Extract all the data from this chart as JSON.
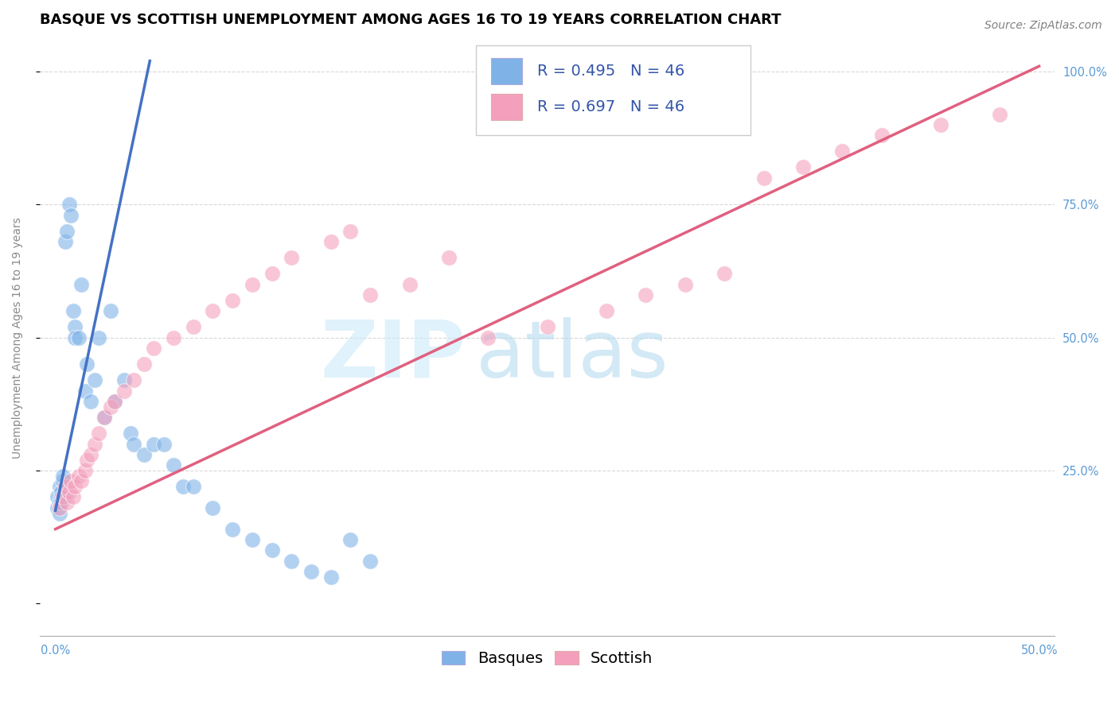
{
  "title": "BASQUE VS SCOTTISH UNEMPLOYMENT AMONG AGES 16 TO 19 YEARS CORRELATION CHART",
  "source": "Source: ZipAtlas.com",
  "ylabel": "Unemployment Among Ages 16 to 19 years",
  "background_color": "#ffffff",
  "basque_scatter_color": "#7fb3e8",
  "scottish_scatter_color": "#f4a0bc",
  "basque_line_color": "#4472c4",
  "scottish_line_color": "#e06080",
  "grid_color": "#d8d8d8",
  "title_fontsize": 13,
  "axis_label_fontsize": 10,
  "tick_fontsize": 10.5,
  "legend_fontsize": 14,
  "source_fontsize": 10,
  "basque_R": 0.495,
  "basque_N": 46,
  "scottish_R": 0.697,
  "scottish_N": 46,
  "xlim": [
    0.0,
    0.5
  ],
  "ylim": [
    0.0,
    1.0
  ],
  "basque_x": [
    0.001,
    0.001,
    0.002,
    0.002,
    0.002,
    0.003,
    0.003,
    0.003,
    0.004,
    0.004,
    0.005,
    0.005,
    0.006,
    0.007,
    0.008,
    0.009,
    0.01,
    0.01,
    0.012,
    0.013,
    0.015,
    0.016,
    0.018,
    0.02,
    0.022,
    0.025,
    0.028,
    0.03,
    0.035,
    0.038,
    0.04,
    0.045,
    0.05,
    0.055,
    0.06,
    0.065,
    0.07,
    0.08,
    0.09,
    0.1,
    0.11,
    0.12,
    0.13,
    0.14,
    0.15,
    0.16
  ],
  "basque_y": [
    0.2,
    0.18,
    0.19,
    0.22,
    0.17,
    0.21,
    0.2,
    0.19,
    0.23,
    0.24,
    0.2,
    0.68,
    0.7,
    0.75,
    0.73,
    0.55,
    0.52,
    0.5,
    0.5,
    0.6,
    0.4,
    0.45,
    0.38,
    0.42,
    0.5,
    0.35,
    0.55,
    0.38,
    0.42,
    0.32,
    0.3,
    0.28,
    0.3,
    0.3,
    0.26,
    0.22,
    0.22,
    0.18,
    0.14,
    0.12,
    0.1,
    0.08,
    0.06,
    0.05,
    0.12,
    0.08
  ],
  "scottish_x": [
    0.002,
    0.004,
    0.005,
    0.006,
    0.007,
    0.008,
    0.009,
    0.01,
    0.012,
    0.013,
    0.015,
    0.016,
    0.018,
    0.02,
    0.022,
    0.025,
    0.028,
    0.03,
    0.035,
    0.04,
    0.045,
    0.05,
    0.06,
    0.07,
    0.08,
    0.09,
    0.1,
    0.11,
    0.12,
    0.14,
    0.15,
    0.16,
    0.18,
    0.2,
    0.22,
    0.25,
    0.28,
    0.3,
    0.32,
    0.34,
    0.36,
    0.38,
    0.4,
    0.42,
    0.45,
    0.48
  ],
  "scottish_y": [
    0.18,
    0.2,
    0.22,
    0.19,
    0.21,
    0.23,
    0.2,
    0.22,
    0.24,
    0.23,
    0.25,
    0.27,
    0.28,
    0.3,
    0.32,
    0.35,
    0.37,
    0.38,
    0.4,
    0.42,
    0.45,
    0.48,
    0.5,
    0.52,
    0.55,
    0.57,
    0.6,
    0.62,
    0.65,
    0.68,
    0.7,
    0.58,
    0.6,
    0.65,
    0.5,
    0.52,
    0.55,
    0.58,
    0.6,
    0.62,
    0.8,
    0.82,
    0.85,
    0.88,
    0.9,
    0.92
  ],
  "basque_line_x0": 0.0,
  "basque_line_y0": 0.175,
  "basque_line_x1": 0.048,
  "basque_line_y1": 1.02,
  "scottish_line_x0": 0.0,
  "scottish_line_y0": 0.14,
  "scottish_line_x1": 0.5,
  "scottish_line_y1": 1.01
}
